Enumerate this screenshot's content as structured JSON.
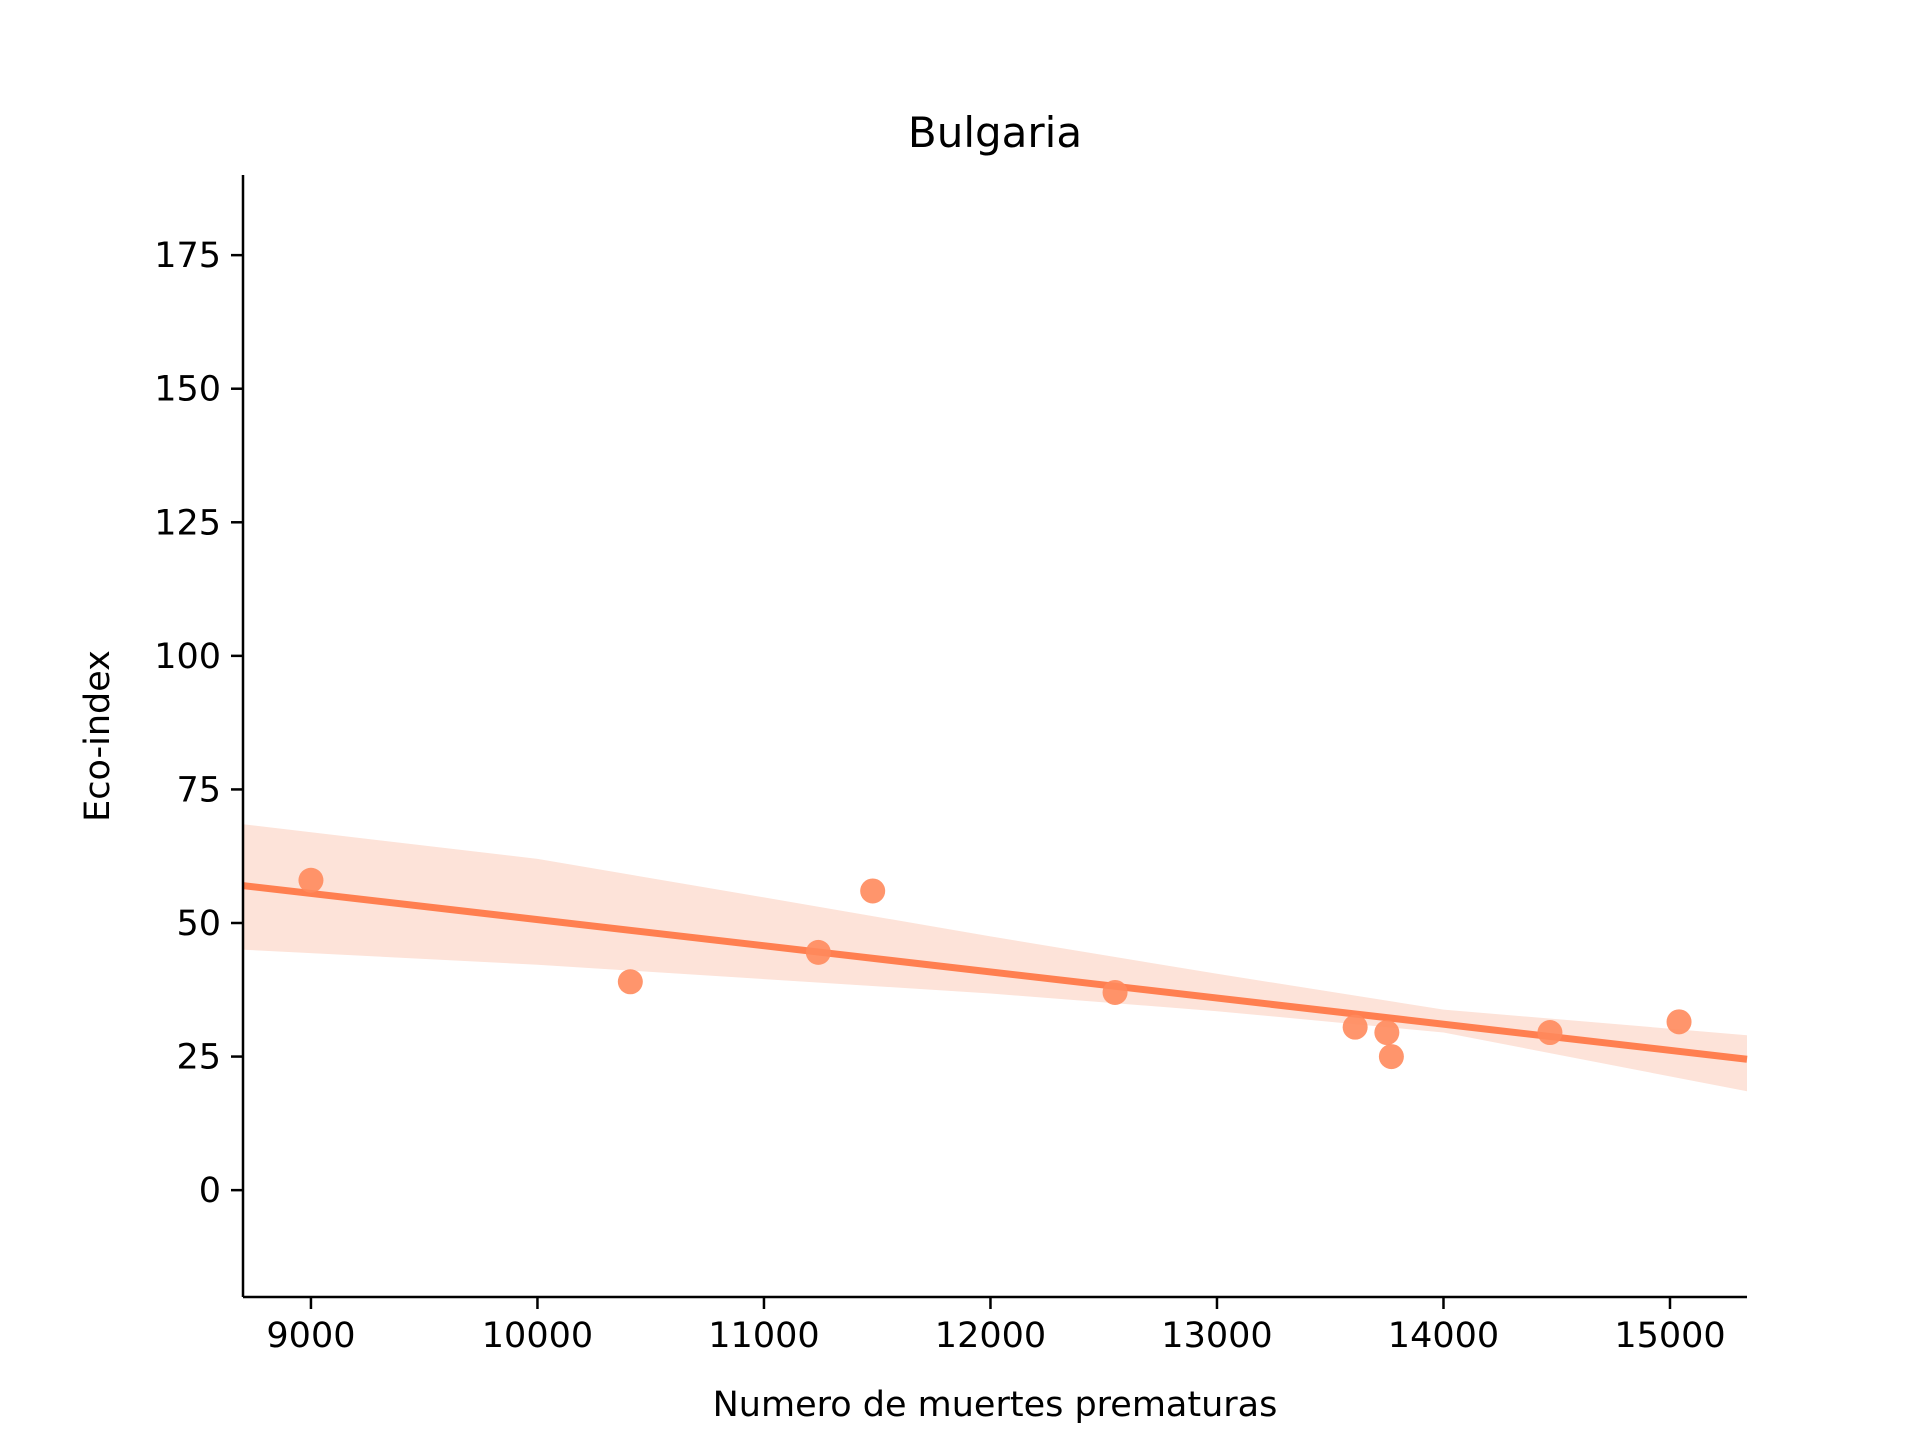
{
  "chart_data": {
    "type": "scatter",
    "title": "Bulgaria",
    "xlabel": "Numero de muertes prematuras",
    "ylabel": "Eco-index",
    "xlim": [
      8700,
      15340
    ],
    "ylim": [
      -20,
      190
    ],
    "xticks": [
      9000,
      10000,
      11000,
      12000,
      13000,
      14000,
      15000
    ],
    "yticks": [
      0,
      25,
      50,
      75,
      100,
      125,
      150,
      175
    ],
    "grid": false,
    "colors": {
      "points": "#ff8a5c",
      "line": "#ff7f50",
      "band": "#fde3d9"
    },
    "points": [
      {
        "x": 9000,
        "y": 58
      },
      {
        "x": 10410,
        "y": 39
      },
      {
        "x": 11240,
        "y": 44.5
      },
      {
        "x": 11480,
        "y": 56
      },
      {
        "x": 12550,
        "y": 37
      },
      {
        "x": 13610,
        "y": 30.5
      },
      {
        "x": 13750,
        "y": 29.5
      },
      {
        "x": 13770,
        "y": 25
      },
      {
        "x": 14470,
        "y": 29.5
      },
      {
        "x": 15040,
        "y": 31.5
      }
    ],
    "regression": {
      "x": [
        8700,
        15340
      ],
      "y": [
        57,
        24.5
      ]
    },
    "confidence_band": {
      "x": [
        8700,
        10000,
        11000,
        12000,
        13000,
        14000,
        15340
      ],
      "upper": [
        68.5,
        62,
        54.8,
        47.5,
        40.5,
        33.8,
        29
      ],
      "lower": [
        45,
        42.2,
        39.5,
        36.8,
        33.5,
        29.5,
        18.5
      ]
    }
  }
}
